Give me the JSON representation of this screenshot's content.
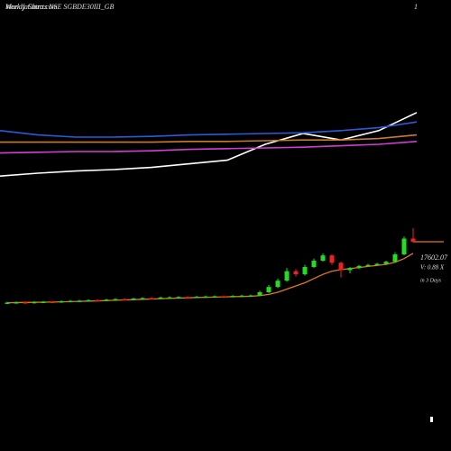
{
  "chart_data": [
    {
      "type": "line",
      "title": "MunafaSutra.com",
      "subtitle": "Weekly Charts NSE SGBDE30III_GB",
      "corner_label": "1",
      "ylim": [
        0,
        100
      ],
      "series": [
        {
          "name": "white",
          "color": "#ffffff",
          "values": [
            6,
            10,
            13,
            15,
            18,
            23,
            28,
            50,
            65,
            56,
            69,
            94
          ]
        },
        {
          "name": "blue",
          "color": "#2a5bd7",
          "values": [
            69,
            63,
            60,
            60,
            61,
            63,
            64,
            65,
            66,
            69,
            73,
            81
          ]
        },
        {
          "name": "orange",
          "color": "#c97a2a",
          "values": [
            53,
            53,
            53,
            53,
            53,
            54,
            54,
            55,
            56,
            56,
            58,
            63
          ]
        },
        {
          "name": "magenta",
          "color": "#d040d0",
          "values": [
            38,
            39,
            40,
            40,
            41,
            43,
            44,
            45,
            46,
            48,
            50,
            54
          ]
        }
      ]
    },
    {
      "type": "candlestick",
      "ylim": [
        8000,
        20000
      ],
      "last_price": 17602.07,
      "volume_text": "V: 0.88 X",
      "period_text": "in 3 Days",
      "up_color": "#22dd22",
      "down_color": "#ee2222",
      "ma_color": "#e07a10",
      "open": [
        11780,
        11820,
        11850,
        11800,
        11880,
        11900,
        11870,
        11950,
        11980,
        12000,
        12050,
        12020,
        12100,
        12150,
        12120,
        12200,
        12250,
        12230,
        12300,
        12320,
        12350,
        12330,
        12380,
        12400,
        12420,
        12400,
        12450,
        12480,
        12500,
        12800,
        13300,
        13900,
        14800,
        14500,
        15200,
        15800,
        16300,
        15600,
        14900,
        15100,
        15300,
        15400,
        15500,
        15700,
        16400,
        17900
      ],
      "close": [
        11820,
        11850,
        11800,
        11880,
        11900,
        11870,
        11950,
        11980,
        12000,
        12050,
        12020,
        12100,
        12150,
        12120,
        12200,
        12250,
        12230,
        12300,
        12320,
        12350,
        12330,
        12380,
        12400,
        12420,
        12400,
        12450,
        12480,
        12500,
        12800,
        13300,
        13900,
        14800,
        14500,
        15200,
        15800,
        16300,
        15600,
        14900,
        15100,
        15300,
        15400,
        15500,
        15700,
        16400,
        17900,
        17602.07
      ],
      "high": [
        11900,
        11930,
        11930,
        11960,
        11980,
        11980,
        12030,
        12060,
        12080,
        12130,
        12130,
        12180,
        12230,
        12230,
        12280,
        12330,
        12330,
        12380,
        12400,
        12430,
        12430,
        12460,
        12480,
        12500,
        12500,
        12530,
        12560,
        12580,
        12950,
        13500,
        14100,
        15100,
        15000,
        15400,
        16000,
        16500,
        16400,
        15700,
        15200,
        15400,
        15500,
        15600,
        15800,
        16600,
        18100,
        18900
      ],
      "low": [
        11700,
        11740,
        11720,
        11720,
        11800,
        11790,
        11790,
        11870,
        11900,
        11920,
        11940,
        11940,
        12020,
        12040,
        12040,
        12120,
        12150,
        12150,
        12220,
        12240,
        12250,
        12250,
        12300,
        12320,
        12320,
        12320,
        12370,
        12400,
        12420,
        12720,
        13200,
        13800,
        14300,
        14400,
        15100,
        15700,
        15400,
        14200,
        14600,
        15000,
        15200,
        15300,
        15400,
        15600,
        16300,
        17500
      ],
      "ma": [
        11800,
        11820,
        11830,
        11840,
        11860,
        11870,
        11890,
        11910,
        11930,
        11960,
        11980,
        12010,
        12040,
        12070,
        12100,
        12130,
        12160,
        12190,
        12220,
        12250,
        12270,
        12300,
        12320,
        12340,
        12360,
        12380,
        12400,
        12420,
        12480,
        12600,
        12800,
        13100,
        13400,
        13700,
        14100,
        14500,
        14800,
        14950,
        15050,
        15150,
        15250,
        15350,
        15450,
        15650,
        16000,
        16500
      ]
    }
  ]
}
